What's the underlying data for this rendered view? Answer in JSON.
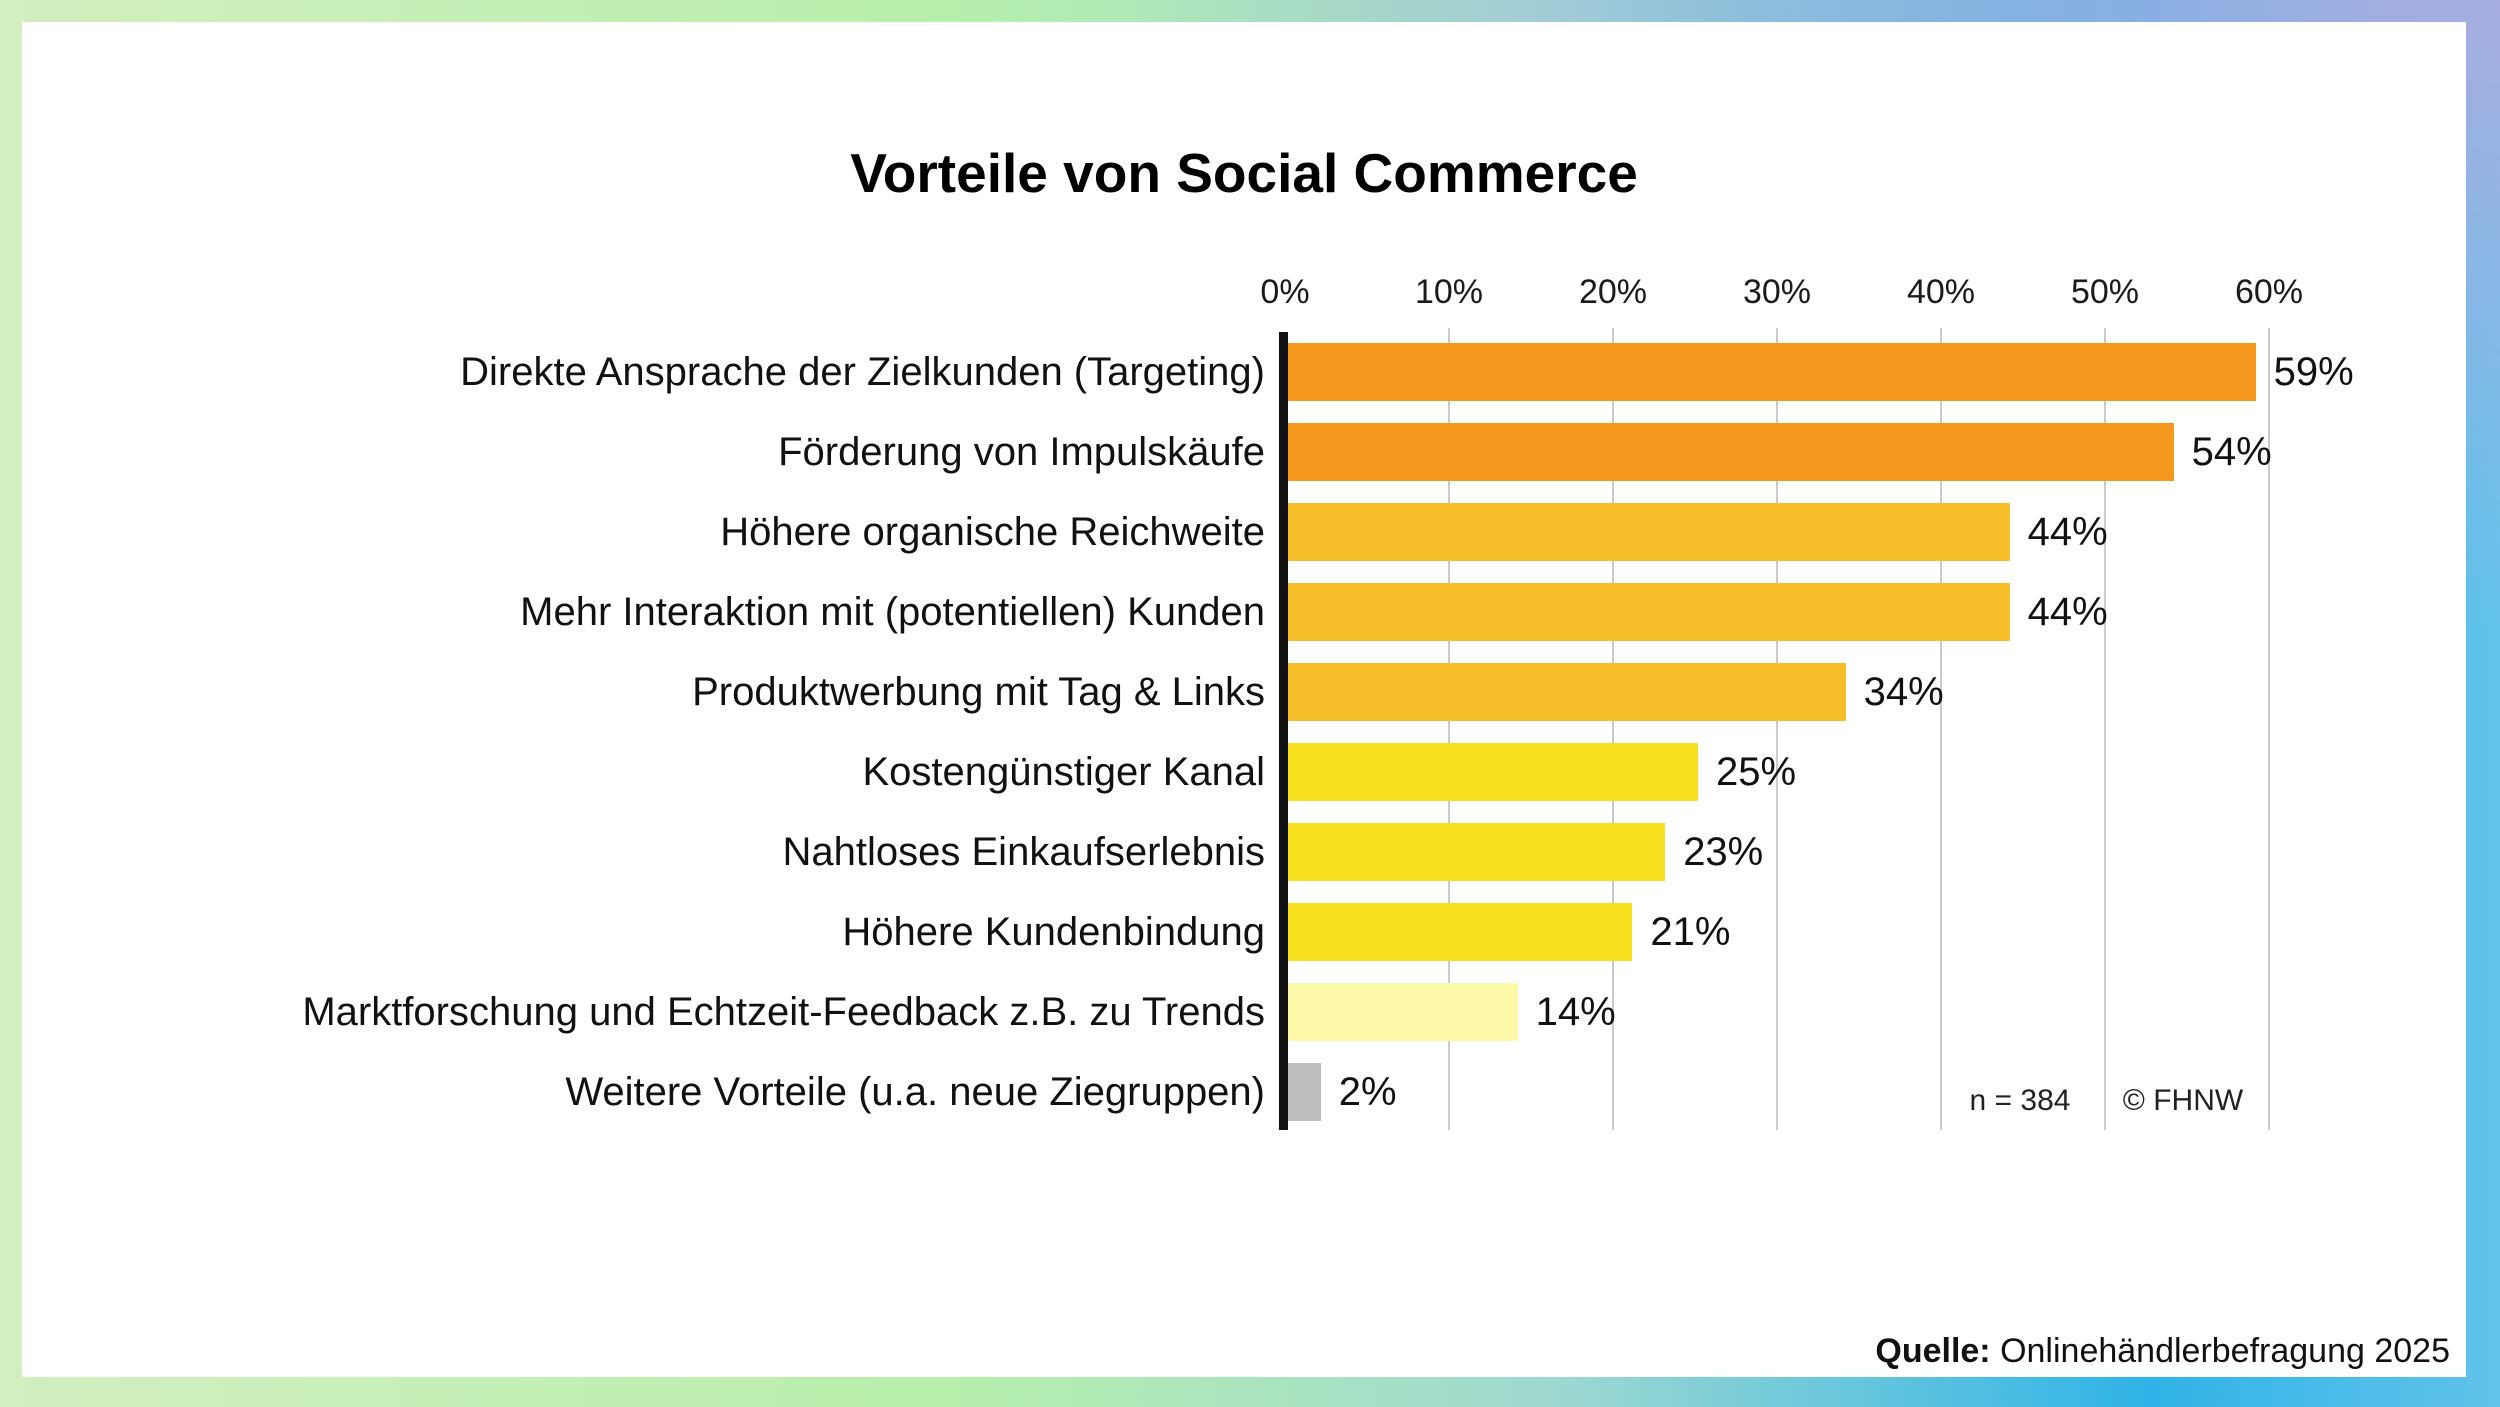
{
  "title": "Vorteile von Social Commerce",
  "chart_data": {
    "type": "bar",
    "orientation": "horizontal",
    "title": "Vorteile von Social Commerce",
    "categories": [
      "Direkte Ansprache der Zielkunden (Targeting)",
      "Förderung von Impulskäufe",
      "Höhere organische Reichweite",
      "Mehr Interaktion mit (potentiellen) Kunden",
      "Produktwerbung mit Tag & Links",
      "Kostengünstiger Kanal",
      "Nahtloses Einkaufserlebnis",
      "Höhere Kundenbindung",
      "Marktforschung und Echtzeit-Feedback z.B. zu Trends",
      "Weitere Vorteile (u.a. neue Ziegruppen)"
    ],
    "values": [
      59,
      54,
      44,
      44,
      34,
      25,
      23,
      21,
      14,
      2
    ],
    "value_labels": [
      "59%",
      "54%",
      "44%",
      "44%",
      "34%",
      "25%",
      "23%",
      "21%",
      "14%",
      "2%"
    ],
    "bar_colors": [
      "#F6981E",
      "#F6981E",
      "#F6BE29",
      "#F6BE29",
      "#F6BE29",
      "#F7E11E",
      "#F7E11E",
      "#F7E11E",
      "#FCF9A8",
      "#BDBDBD"
    ],
    "x_ticks": [
      "0%",
      "10%",
      "20%",
      "30%",
      "40%",
      "50%",
      "60%"
    ],
    "xlim": [
      0,
      60
    ],
    "grid": true,
    "legend": "none",
    "sample_size_label": "n = 384",
    "copyright_label": "© FHNW"
  },
  "source": {
    "prefix": "Quelle:",
    "text": " Onlinehändlerbefragung 2025"
  },
  "colors": {
    "gridline": "#cccccc",
    "axis": "#111111",
    "background": "#ffffff",
    "border_green": "#b7efac",
    "border_lavender": "#a8ade1",
    "border_blue": "#2fb3e8"
  }
}
